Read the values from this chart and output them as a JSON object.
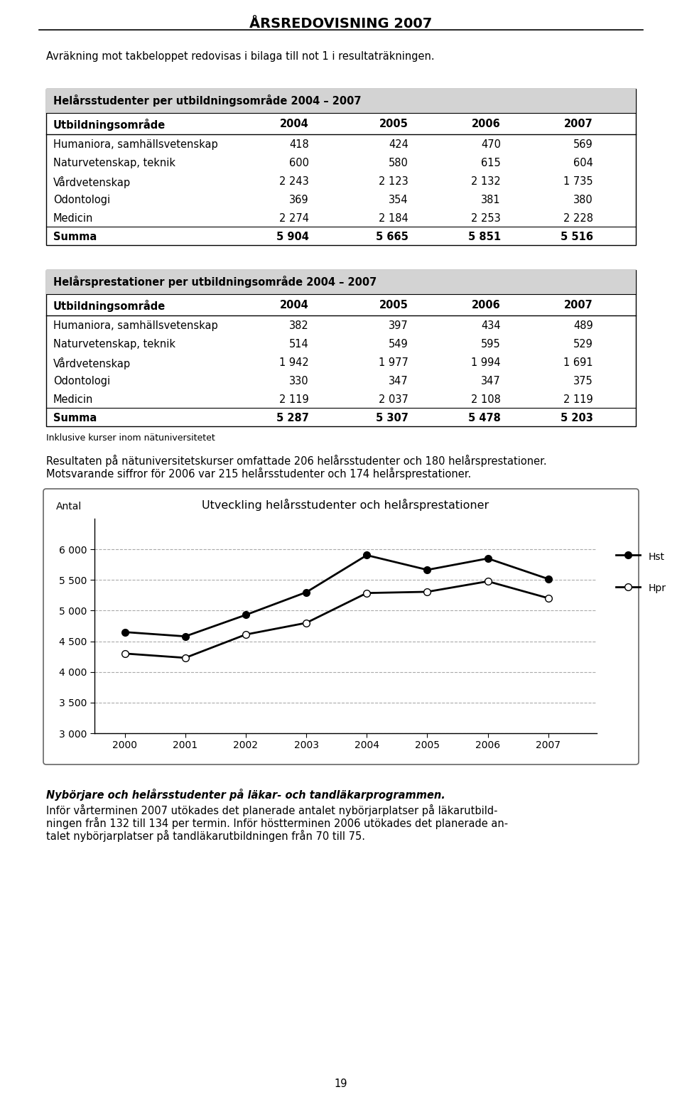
{
  "page_title": "ÅRSREDOVISNING 2007",
  "intro_text": "Avräkning mot takbeloppet redovisas i bilaga till not 1 i resultaträkningen.",
  "table1_title": "Helårsstudenter per utbildningsområde 2004 – 2007",
  "table1_header": [
    "Utbildningsområde",
    "2004",
    "2005",
    "2006",
    "2007"
  ],
  "table1_rows": [
    [
      "Humaniora, samhällsvetenskap",
      "418",
      "424",
      "470",
      "569"
    ],
    [
      "Naturvetenskap, teknik",
      "600",
      "580",
      "615",
      "604"
    ],
    [
      "Vårdvetenskap",
      "2 243",
      "2 123",
      "2 132",
      "1 735"
    ],
    [
      "Odontologi",
      "369",
      "354",
      "381",
      "380"
    ],
    [
      "Medicin",
      "2 274",
      "2 184",
      "2 253",
      "2 228"
    ],
    [
      "Summa",
      "5 904",
      "5 665",
      "5 851",
      "5 516"
    ]
  ],
  "table1_summa_row": 5,
  "table2_title": "Helårsprestationer per utbildningsområde 2004 – 2007",
  "table2_header": [
    "Utbildningsområde",
    "2004",
    "2005",
    "2006",
    "2007"
  ],
  "table2_rows": [
    [
      "Humaniora, samhällsvetenskap",
      "382",
      "397",
      "434",
      "489"
    ],
    [
      "Naturvetenskap, teknik",
      "514",
      "549",
      "595",
      "529"
    ],
    [
      "Vårdvetenskap",
      "1 942",
      "1 977",
      "1 994",
      "1 691"
    ],
    [
      "Odontologi",
      "330",
      "347",
      "347",
      "375"
    ],
    [
      "Medicin",
      "2 119",
      "2 037",
      "2 108",
      "2 119"
    ],
    [
      "Summa",
      "5 287",
      "5 307",
      "5 478",
      "5 203"
    ]
  ],
  "table2_summa_row": 5,
  "table2_footnote": "Inklusive kurser inom nätuniversitetet",
  "result_line1": "Resultaten på nätuniversitetskurser omfattade 206 helårsstudenter och 180 helårsprestationer.",
  "result_line2": "Motsvarande siffror för 2006 var 215 helårsstudenter och 174 helårsprestationer.",
  "chart_title": "Utveckling helårsstudenter och helårsprestationer",
  "chart_ylabel": "Antal",
  "chart_years": [
    2000,
    2001,
    2002,
    2003,
    2004,
    2005,
    2006,
    2007
  ],
  "chart_hst": [
    4650,
    4580,
    4930,
    5300,
    5904,
    5665,
    5851,
    5516
  ],
  "chart_hpr": [
    4300,
    4230,
    4610,
    4800,
    5287,
    5307,
    5478,
    5203
  ],
  "chart_ylim": [
    3000,
    6500
  ],
  "chart_yticks": [
    3000,
    3500,
    4000,
    4500,
    5000,
    5500,
    6000
  ],
  "chart_legend_hst": "Hst",
  "chart_legend_hpr": "Hpr",
  "bottom_text_bold": "Nybörjare och helårsstudenter på läkar- och tandläkarprogrammen.",
  "bottom_line1": "Inför vårterminen 2007 utökades det planerade antalet nybörjarplatser på läkarutbild-",
  "bottom_line2": "ningen från 132 till 134 per termin. Inför höstterminen 2006 utökades det planerade an-",
  "bottom_line3": "talet nybörjarplatser på tandläkarutbildningen från 70 till 75.",
  "page_number": "19",
  "bg_color": "#ffffff",
  "table_header_bg": "#d3d3d3",
  "grid_color": "#aaaaaa"
}
